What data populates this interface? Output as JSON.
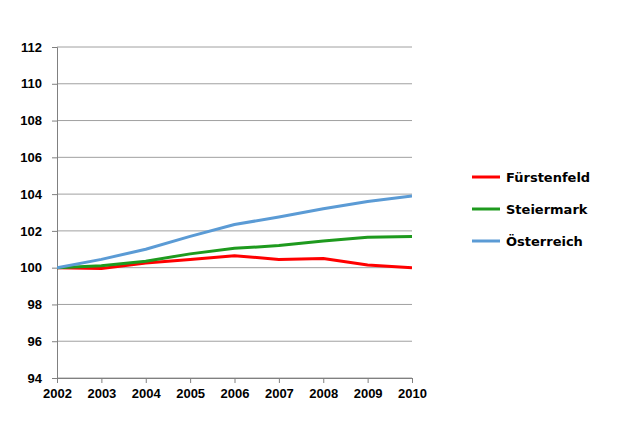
{
  "chart_data": {
    "type": "line",
    "x": [
      2002,
      2003,
      2004,
      2005,
      2006,
      2007,
      2008,
      2009,
      2010
    ],
    "series": [
      {
        "name": "Fürstenfeld",
        "color": "#ff0000",
        "values": [
          100,
          99.95,
          100.25,
          100.45,
          100.65,
          100.45,
          100.5,
          100.15,
          100.0
        ]
      },
      {
        "name": "Steiermark",
        "color": "#1e9a1e",
        "values": [
          100,
          100.1,
          100.35,
          100.75,
          101.05,
          101.2,
          101.45,
          101.65,
          101.7
        ]
      },
      {
        "name": "Österreich",
        "color": "#5b9bd5",
        "values": [
          100,
          100.45,
          101.0,
          101.7,
          102.35,
          102.75,
          103.2,
          103.6,
          103.9
        ]
      }
    ],
    "xlim": [
      2002,
      2010
    ],
    "xticks": [
      2002,
      2003,
      2004,
      2005,
      2006,
      2007,
      2008,
      2009,
      2010
    ],
    "ylim": [
      94,
      112
    ],
    "yticks": [
      94,
      96,
      98,
      100,
      102,
      104,
      106,
      108,
      110,
      112
    ],
    "grid": true,
    "legend": "right"
  }
}
